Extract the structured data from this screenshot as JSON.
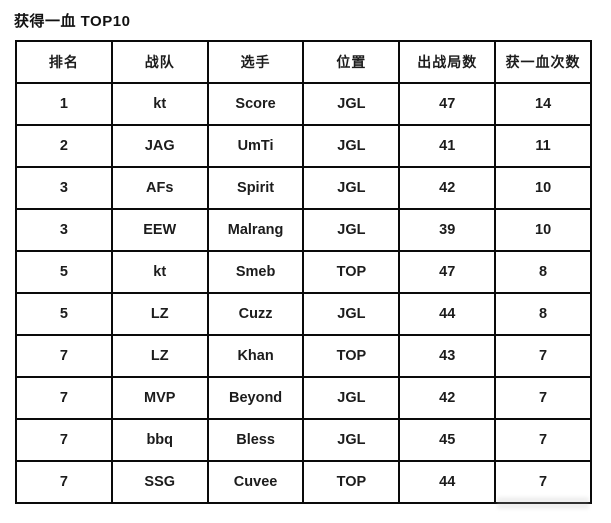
{
  "title": "获得一血 TOP10",
  "chart_data": {
    "type": "table",
    "title": "获得一血 TOP10",
    "columns": [
      "排名",
      "战队",
      "选手",
      "位置",
      "出战局数",
      "获一血次数"
    ],
    "rows": [
      [
        "1",
        "kt",
        "Score",
        "JGL",
        "47",
        "14"
      ],
      [
        "2",
        "JAG",
        "UmTi",
        "JGL",
        "41",
        "11"
      ],
      [
        "3",
        "AFs",
        "Spirit",
        "JGL",
        "42",
        "10"
      ],
      [
        "3",
        "EEW",
        "Malrang",
        "JGL",
        "39",
        "10"
      ],
      [
        "5",
        "kt",
        "Smeb",
        "TOP",
        "47",
        "8"
      ],
      [
        "5",
        "LZ",
        "Cuzz",
        "JGL",
        "44",
        "8"
      ],
      [
        "7",
        "LZ",
        "Khan",
        "TOP",
        "43",
        "7"
      ],
      [
        "7",
        "MVP",
        "Beyond",
        "JGL",
        "42",
        "7"
      ],
      [
        "7",
        "bbq",
        "Bless",
        "JGL",
        "45",
        "7"
      ],
      [
        "7",
        "SSG",
        "Cuvee",
        "TOP",
        "44",
        "7"
      ]
    ],
    "legend": null,
    "grid": true
  },
  "colors": {
    "background": "#ffffff",
    "border": "#0a0a0a",
    "text": "#1c1c1c"
  }
}
